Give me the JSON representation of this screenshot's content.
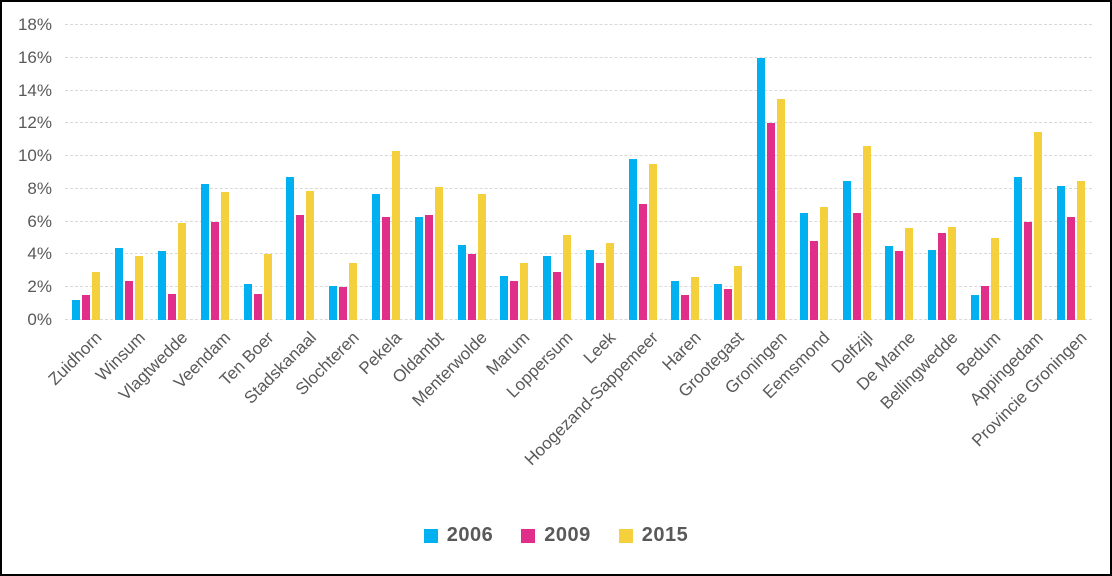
{
  "chart_data": {
    "type": "bar",
    "title": "",
    "categories": [
      "Zuidhorn",
      "Winsum",
      "Vlagtwedde",
      "Veendam",
      "Ten Boer",
      "Stadskanaal",
      "Slochteren",
      "Pekela",
      "Oldambt",
      "Menterwolde",
      "Marum",
      "Loppersum",
      "Leek",
      "Hoogezand-Sappemeer",
      "Haren",
      "Grootegast",
      "Groningen",
      "Eemsmond",
      "Delfzijl",
      "De Marne",
      "Bellingwedde",
      "Bedum",
      "Appingedam",
      "Provincie Groningen"
    ],
    "series": [
      {
        "name": "2006",
        "color": "#00B0F0",
        "values": [
          1.2,
          4.4,
          4.2,
          8.3,
          2.2,
          8.7,
          2.1,
          7.7,
          6.3,
          4.6,
          2.7,
          3.9,
          4.3,
          9.8,
          2.4,
          2.2,
          16.0,
          6.5,
          8.5,
          4.5,
          4.3,
          1.5,
          8.7,
          8.2
        ]
      },
      {
        "name": "2009",
        "color": "#E12E8A",
        "values": [
          1.5,
          2.4,
          1.6,
          6.0,
          1.6,
          6.4,
          2.0,
          6.3,
          6.4,
          4.0,
          2.4,
          2.9,
          3.5,
          7.1,
          1.5,
          1.9,
          12.0,
          4.8,
          6.5,
          4.2,
          5.3,
          2.1,
          6.0,
          6.3
        ]
      },
      {
        "name": "2015",
        "color": "#F4D13C",
        "values": [
          2.9,
          3.9,
          5.9,
          7.8,
          4.0,
          7.9,
          3.5,
          10.3,
          8.1,
          7.7,
          3.5,
          5.2,
          4.7,
          9.5,
          2.6,
          3.3,
          13.5,
          6.9,
          10.6,
          5.6,
          5.7,
          5.0,
          11.5,
          8.5
        ]
      }
    ],
    "xlabel": "",
    "ylabel": "",
    "ylim": [
      0,
      18
    ],
    "ytick_step": 2,
    "yticks": [
      "0%",
      "2%",
      "4%",
      "6%",
      "8%",
      "10%",
      "12%",
      "14%",
      "16%",
      "18%"
    ],
    "grid": "horizontal-dashed",
    "legend_position": "bottom",
    "x_label_rotation_deg": 45
  },
  "styles": {
    "axis_text_color": "#595959",
    "gridline_color": "#D9D9D9",
    "frame_border_color": "#000000",
    "background_color": "#FFFFFF"
  }
}
